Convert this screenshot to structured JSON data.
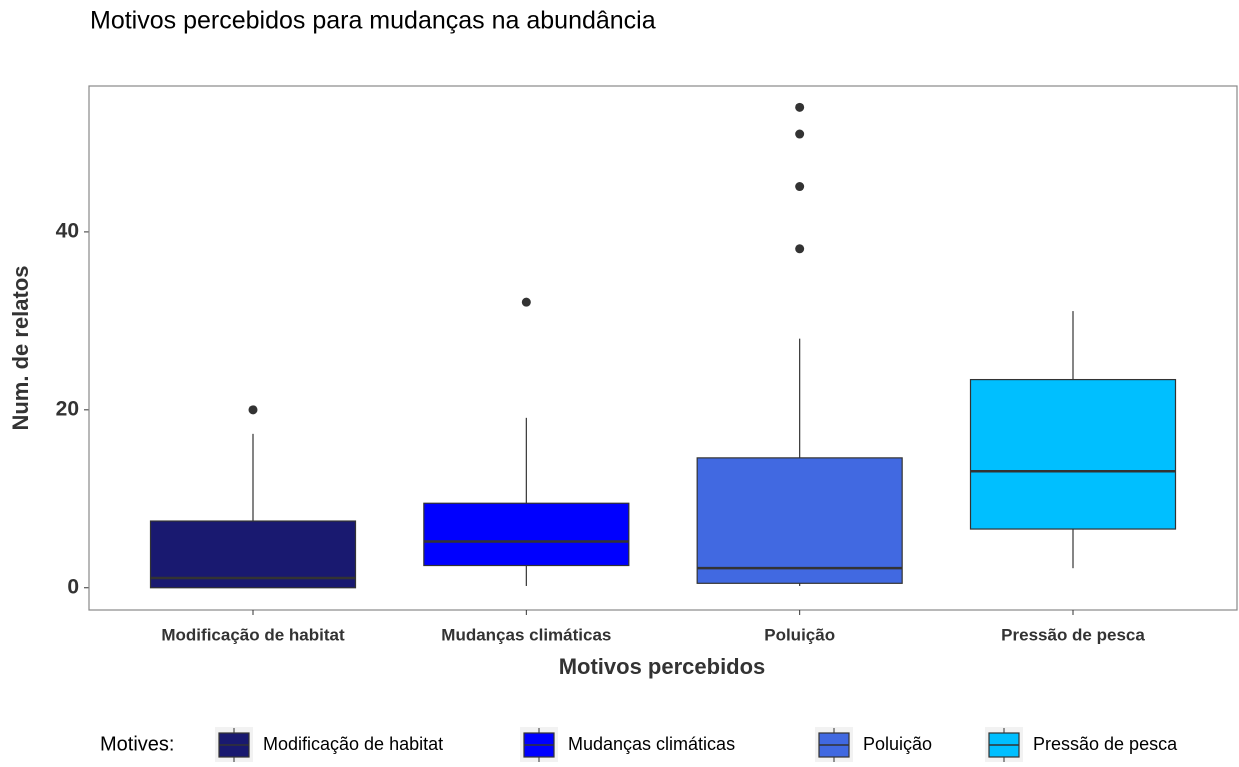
{
  "chart_data": {
    "type": "boxplot",
    "title": "Motivos percebidos para mudanças na abundância",
    "x_label": "Motivos percebidos",
    "y_label": "Num. de relatos",
    "legend_title": "Motives:",
    "legend_position": "bottom",
    "grid": false,
    "categories": [
      "Modificação de habitat",
      "Mudanças climáticas",
      "Poluição",
      "Pressão de pesca"
    ],
    "colors": [
      "#191970",
      "#0000ff",
      "#4169e1",
      "#00bfff"
    ],
    "boxes": [
      {
        "min": 0,
        "q1": 0,
        "median": 1.1,
        "q3": 7.5,
        "max": 17.3,
        "outliers": [
          20
        ]
      },
      {
        "min": 0.2,
        "q1": 2.5,
        "median": 5.2,
        "q3": 9.5,
        "max": 19.1,
        "outliers": [
          32.1
        ]
      },
      {
        "min": 0.2,
        "q1": 0.5,
        "median": 2.2,
        "q3": 14.6,
        "max": 28,
        "outliers": [
          38.1,
          45.1,
          51,
          54
        ]
      },
      {
        "min": 2.2,
        "q1": 6.6,
        "median": 13.1,
        "q3": 23.4,
        "max": 31.1,
        "outliers": []
      }
    ],
    "ylim": [
      -2.5,
      56.4
    ],
    "yticks": [
      0,
      20,
      40
    ]
  }
}
